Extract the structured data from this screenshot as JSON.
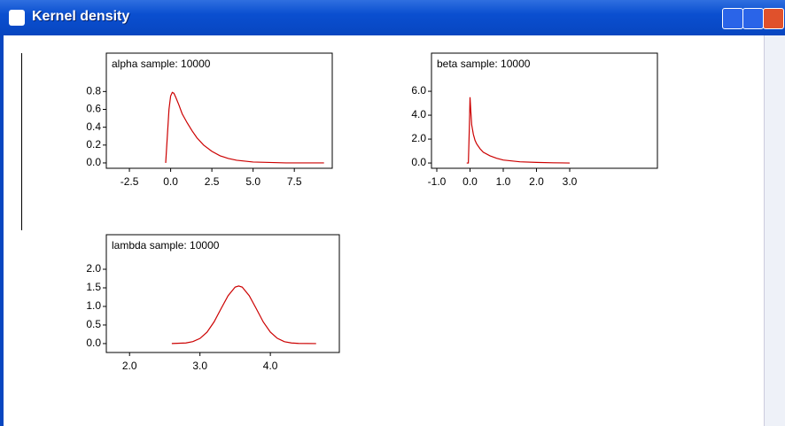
{
  "window": {
    "title": "Kernel density"
  },
  "chart_data": [
    {
      "type": "line",
      "title": "alpha sample: 10000",
      "x": [
        -0.3,
        -0.2,
        -0.1,
        0,
        0.1,
        0.2,
        0.3,
        0.5,
        0.7,
        1,
        1.3,
        1.6,
        2,
        2.5,
        3,
        3.5,
        4,
        5,
        6,
        7,
        8,
        9.3
      ],
      "series": [
        {
          "color": "#cc0000",
          "values": [
            0,
            0.3,
            0.6,
            0.75,
            0.79,
            0.78,
            0.74,
            0.65,
            0.55,
            0.45,
            0.36,
            0.28,
            0.2,
            0.13,
            0.08,
            0.05,
            0.03,
            0.01,
            0.005,
            0,
            0,
            0
          ]
        }
      ],
      "xlim": [
        -3.9,
        9.8
      ],
      "ylim": [
        -0.06,
        1.23
      ],
      "xticks": [
        -2.5,
        {
          "value": 0,
          "label": "0.0"
        },
        2.5,
        {
          "value": 5,
          "label": "5.0"
        },
        7.5
      ],
      "yticks": [
        {
          "value": 0,
          "label": "0.0"
        },
        0.2,
        0.4,
        0.6,
        0.8
      ]
    },
    {
      "type": "line",
      "title": "beta sample: 10000",
      "x": [
        -0.1,
        -0.05,
        -0.02,
        0,
        0.02,
        0.05,
        0.1,
        0.15,
        0.2,
        0.3,
        0.4,
        0.6,
        0.8,
        1,
        1.5,
        2,
        2.5,
        3
      ],
      "series": [
        {
          "color": "#cc0000",
          "values": [
            0,
            0,
            3,
            5.5,
            4.5,
            3.2,
            2.4,
            1.9,
            1.6,
            1.2,
            0.9,
            0.6,
            0.4,
            0.25,
            0.1,
            0.05,
            0.02,
            0
          ]
        }
      ],
      "xlim": [
        -1.16,
        5.64
      ],
      "ylim": [
        -0.44,
        9.19
      ],
      "xticks": [
        {
          "value": -1,
          "label": "-1.0"
        },
        {
          "value": 0,
          "label": "0.0"
        },
        {
          "value": 1,
          "label": "1.0"
        },
        {
          "value": 2,
          "label": "2.0"
        },
        {
          "value": 3,
          "label": "3.0"
        }
      ],
      "yticks": [
        {
          "value": 0,
          "label": "0.0"
        },
        {
          "value": 2,
          "label": "2.0"
        },
        {
          "value": 4,
          "label": "4.0"
        },
        {
          "value": 6,
          "label": "6.0"
        }
      ]
    },
    {
      "type": "line",
      "title": "lambda sample: 10000",
      "x": [
        2.6,
        2.8,
        2.9,
        3,
        3.1,
        3.2,
        3.3,
        3.4,
        3.5,
        3.55,
        3.6,
        3.7,
        3.8,
        3.9,
        4,
        4.1,
        4.2,
        4.3,
        4.4,
        4.65
      ],
      "series": [
        {
          "color": "#cc0000",
          "values": [
            0.001,
            0.017,
            0.053,
            0.138,
            0.307,
            0.582,
            0.94,
            1.29,
            1.52,
            1.55,
            1.52,
            1.29,
            0.94,
            0.58,
            0.31,
            0.14,
            0.05,
            0.017,
            0.005,
            0
          ]
        }
      ],
      "xlim": [
        1.67,
        4.98
      ],
      "ylim": [
        -0.24,
        2.93
      ],
      "xticks": [
        {
          "value": 2,
          "label": "2.0"
        },
        {
          "value": 3,
          "label": "3.0"
        },
        {
          "value": 4,
          "label": "4.0"
        }
      ],
      "yticks": [
        {
          "value": 0,
          "label": "0.0"
        },
        0.5,
        {
          "value": 1,
          "label": "1.0"
        },
        1.5,
        {
          "value": 2,
          "label": "2.0"
        }
      ]
    }
  ]
}
